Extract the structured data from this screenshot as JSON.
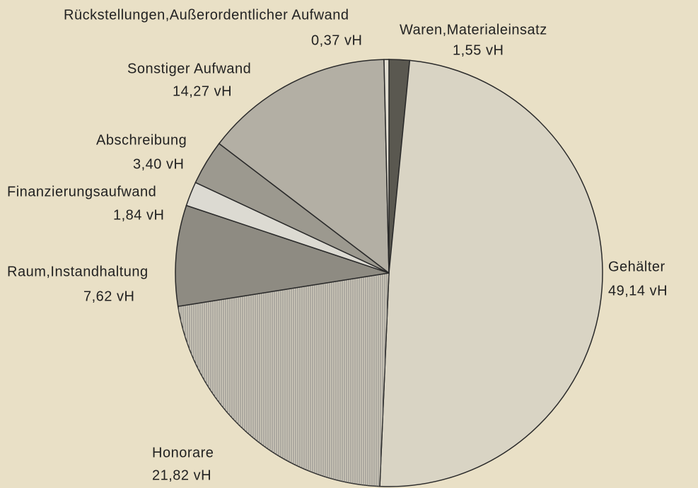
{
  "chart_data": {
    "type": "pie",
    "categories": [
      "Waren,Materialeinsatz",
      "Gehälter",
      "Honorare",
      "Raum,Instandhaltung",
      "Finanzierungsaufwand",
      "Abschreibung",
      "Sonstiger Aufwand",
      "Rückstellungen,Außerordentlicher Aufwand"
    ],
    "values": [
      1.55,
      49.14,
      21.82,
      7.62,
      1.84,
      3.4,
      14.27,
      0.37
    ],
    "value_labels": [
      "1,55 vH",
      "49,14 vH",
      "21,82 vH",
      "7,62 vH",
      "1,84 vH",
      "3,40 vH",
      "14,27 vH",
      "0,37 vH"
    ],
    "colors": [
      "#5a5850",
      "#d9d4c4",
      "#cfcabb",
      "#8e8b82",
      "#dcdad2",
      "#9c998f",
      "#b3afa4",
      "#e2ded2"
    ]
  }
}
